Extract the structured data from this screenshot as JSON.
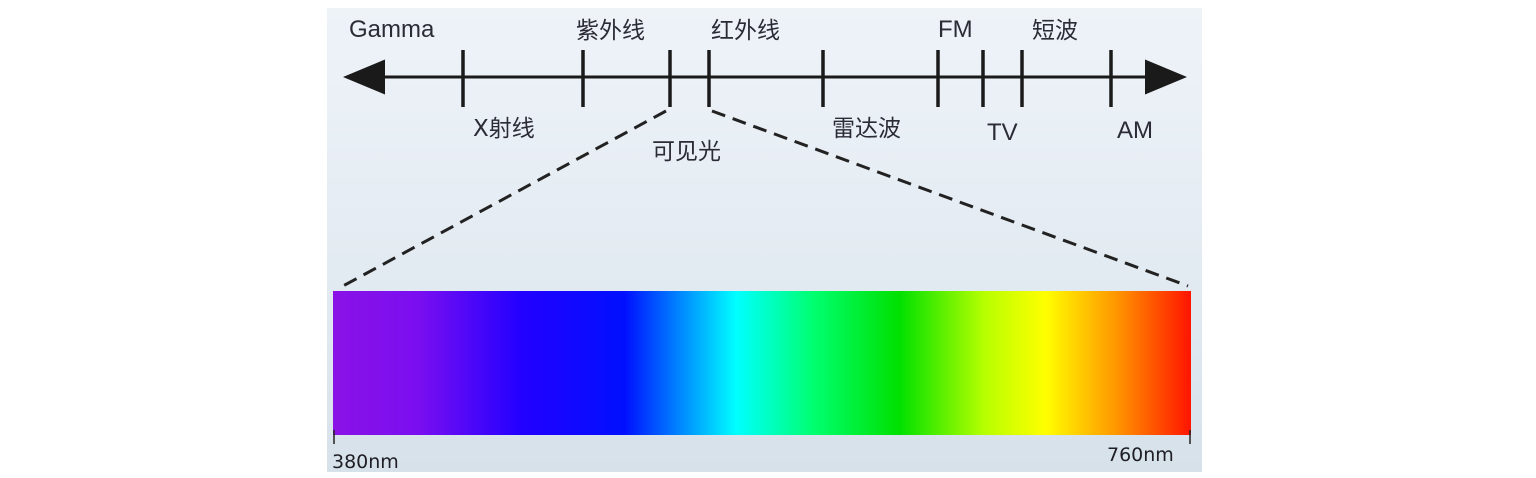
{
  "top_labels": [
    {
      "key": "gamma",
      "text": "Gamma"
    },
    {
      "key": "uv",
      "text": "紫外线"
    },
    {
      "key": "ir",
      "text": "红外线"
    },
    {
      "key": "fm",
      "text": "FM"
    },
    {
      "key": "shortwave",
      "text": "短波"
    }
  ],
  "bottom_labels": [
    {
      "key": "xray",
      "text": "X射线"
    },
    {
      "key": "visible",
      "text": "可见光"
    },
    {
      "key": "radar",
      "text": "雷达波"
    },
    {
      "key": "tv",
      "text": "TV"
    },
    {
      "key": "am",
      "text": "AM"
    }
  ],
  "wavelength_start": "380nm",
  "wavelength_end": "760nm",
  "spectrum_colors": [
    "#8a12e6",
    "#5a0af2",
    "#1a00ff",
    "#0033ff",
    "#00ffff",
    "#00ff66",
    "#00e000",
    "#b6ff00",
    "#ffff00",
    "#ff9900",
    "#ff1a00"
  ],
  "colors": {
    "axis": "#1a1a1a",
    "text": "#2b2b36"
  }
}
